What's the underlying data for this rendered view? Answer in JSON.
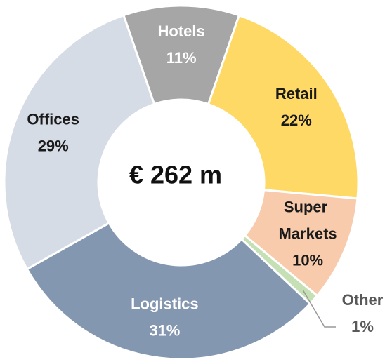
{
  "chart_data": {
    "type": "donut",
    "center_label": "€ 262 m",
    "categories": [
      "Hotels",
      "Retail",
      "Super Markets",
      "Other",
      "Logistics",
      "Offices"
    ],
    "values": [
      11,
      22,
      10,
      1,
      31,
      29
    ],
    "value_labels": [
      "11%",
      "22%",
      "10%",
      "1%",
      "31%",
      "29%"
    ],
    "colors": [
      "#a6a6a6",
      "#ffd966",
      "#f8cbad",
      "#c5e0b4",
      "#8497b0",
      "#d6dce5"
    ]
  }
}
